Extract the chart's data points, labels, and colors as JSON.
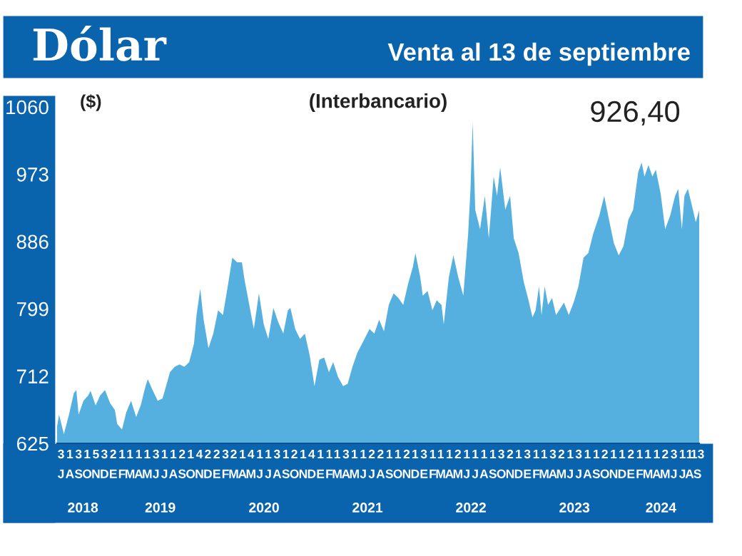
{
  "chart_data": {
    "type": "area",
    "title": "Dólar",
    "subtitle": "Venta al 13 de septiembre",
    "ylabel": "($)",
    "color": "#55b0e0",
    "annotations": [
      "(Interbancario)",
      "926,40"
    ],
    "x2ticks": [
      {
        "value": "2018-10-01",
        "label": "2018"
      },
      {
        "value": "2019-07-01",
        "label": "2019"
      },
      {
        "value": "2020-07-01",
        "label": "2020"
      },
      {
        "value": "2021-07-01",
        "label": "2021"
      },
      {
        "value": "2022-07-01",
        "label": "2022"
      },
      {
        "value": "2023-07-01",
        "label": "2023"
      },
      {
        "value": "2024-05-01",
        "label": "2024"
      }
    ],
    "x": [
      "2018-07-02",
      "2018-07-09",
      "2018-07-26",
      "2018-08-13",
      "2018-08-30",
      "2018-09-08",
      "2018-09-16",
      "2018-10-03",
      "2018-10-20",
      "2018-10-28",
      "2018-11-15",
      "2018-12-01",
      "2018-12-18",
      "2019-01-05",
      "2019-01-22",
      "2019-01-30",
      "2019-02-16",
      "2019-03-03",
      "2019-03-20",
      "2019-04-07",
      "2019-04-23",
      "2019-05-10",
      "2019-05-18",
      "2019-06-05",
      "2019-06-22",
      "2019-07-09",
      "2019-07-26",
      "2019-08-04",
      "2019-08-21",
      "2019-09-07",
      "2019-09-24",
      "2019-10-11",
      "2019-10-28",
      "2019-11-06",
      "2019-11-19",
      "2019-12-01",
      "2019-12-18",
      "2020-01-04",
      "2020-01-21",
      "2020-02-07",
      "2020-02-24",
      "2020-03-11",
      "2020-03-28",
      "2020-04-14",
      "2020-04-23",
      "2020-05-10",
      "2020-05-26",
      "2020-06-13",
      "2020-06-30",
      "2020-07-16",
      "2020-08-03",
      "2020-08-20",
      "2020-09-07",
      "2020-09-23",
      "2020-10-02",
      "2020-10-19",
      "2020-11-05",
      "2020-11-22",
      "2020-12-09",
      "2020-12-26",
      "2021-01-12",
      "2021-01-29",
      "2021-02-15",
      "2021-03-02",
      "2021-03-19",
      "2021-04-06",
      "2021-04-22",
      "2021-05-09",
      "2021-05-26",
      "2021-06-12",
      "2021-07-08",
      "2021-07-25",
      "2021-08-11",
      "2021-08-28",
      "2021-09-14",
      "2021-10-01",
      "2021-10-18",
      "2021-11-04",
      "2021-11-21",
      "2021-12-08",
      "2021-12-17",
      "2022-01-03",
      "2022-01-12",
      "2022-01-29",
      "2022-02-15",
      "2022-03-02",
      "2022-03-19",
      "2022-03-27",
      "2022-04-14",
      "2022-04-30",
      "2022-05-17",
      "2022-06-04",
      "2022-06-21",
      "2022-06-29",
      "2022-07-07",
      "2022-07-16",
      "2022-08-02",
      "2022-08-19",
      "2022-09-02",
      "2022-09-19",
      "2022-10-01",
      "2022-10-12",
      "2022-10-30",
      "2022-11-16",
      "2022-11-29",
      "2022-12-16",
      "2023-01-03",
      "2023-01-20",
      "2023-02-03",
      "2023-02-14",
      "2023-02-26",
      "2023-03-07",
      "2023-03-18",
      "2023-03-30",
      "2023-04-13",
      "2023-04-27",
      "2023-05-08",
      "2023-05-25",
      "2023-06-11",
      "2023-06-28",
      "2023-07-15",
      "2023-08-02",
      "2023-08-19",
      "2023-09-05",
      "2023-09-27",
      "2023-10-14",
      "2023-10-31",
      "2023-11-17",
      "2023-12-04",
      "2023-12-21",
      "2024-01-07",
      "2024-01-24",
      "2024-02-11",
      "2024-02-23",
      "2024-03-04",
      "2024-03-18",
      "2024-04-01",
      "2024-04-13",
      "2024-04-30",
      "2024-05-16",
      "2024-06-03",
      "2024-06-20",
      "2024-07-01",
      "2024-07-14",
      "2024-07-23",
      "2024-08-04",
      "2024-08-18",
      "2024-09-01",
      "2024-09-13"
    ],
    "values": [
      647,
      662,
      637,
      662,
      690,
      694,
      662,
      680,
      687,
      693,
      674,
      687,
      694,
      677,
      668,
      650,
      643,
      665,
      680,
      659,
      674,
      699,
      708,
      693,
      680,
      683,
      705,
      717,
      724,
      727,
      724,
      730,
      754,
      791,
      825,
      785,
      748,
      767,
      797,
      791,
      828,
      865,
      859,
      859,
      837,
      804,
      773,
      819,
      779,
      760,
      800,
      782,
      767,
      797,
      800,
      773,
      760,
      767,
      739,
      699,
      733,
      736,
      717,
      730,
      711,
      699,
      702,
      724,
      742,
      754,
      773,
      767,
      785,
      770,
      804,
      819,
      813,
      804,
      831,
      853,
      871,
      840,
      816,
      822,
      797,
      810,
      804,
      779,
      840,
      868,
      840,
      816,
      896,
      951,
      1040,
      927,
      902,
      945,
      890,
      970,
      945,
      982,
      927,
      945,
      890,
      871,
      834,
      810,
      788,
      797,
      828,
      791,
      828,
      804,
      813,
      791,
      797,
      807,
      791,
      807,
      828,
      865,
      871,
      896,
      920,
      945,
      914,
      884,
      868,
      880,
      914,
      927,
      976,
      988,
      970,
      985,
      970,
      979,
      948,
      902,
      920,
      945,
      954,
      902,
      945,
      954,
      933,
      911,
      926.4
    ],
    "ylim": [
      625,
      1060
    ],
    "yticks": [
      625,
      712,
      799,
      886,
      973,
      1060
    ],
    "xlim": [
      "2018-07-02",
      "2024-09-13"
    ],
    "x2lim": [
      "2018-07-02",
      "2024-09-13"
    ],
    "xticks": [
      {
        "value": "2018-07-16",
        "label": "3\nJ"
      },
      {
        "value": "2018-08-16",
        "label": "1\nA"
      },
      {
        "value": "2018-09-16",
        "label": "3\nS"
      },
      {
        "value": "2018-10-16",
        "label": "1\nO"
      },
      {
        "value": "2018-11-16",
        "label": "5\nN"
      },
      {
        "value": "2018-12-16",
        "label": "3\nD"
      },
      {
        "value": "2019-01-16",
        "label": "2\nE"
      },
      {
        "value": "2019-02-16",
        "label": "1\nF"
      },
      {
        "value": "2019-03-16",
        "label": "1\nM"
      },
      {
        "value": "2019-04-16",
        "label": "1\nA"
      },
      {
        "value": "2019-05-16",
        "label": "1\nM"
      },
      {
        "value": "2019-06-16",
        "label": "3\nJ"
      },
      {
        "value": "2019-07-16",
        "label": "1\nJ"
      },
      {
        "value": "2019-08-16",
        "label": "1\nA"
      },
      {
        "value": "2019-09-16",
        "label": "2\nS"
      },
      {
        "value": "2019-10-16",
        "label": "1\nO"
      },
      {
        "value": "2019-11-16",
        "label": "4\nN"
      },
      {
        "value": "2019-12-16",
        "label": "2\nD"
      },
      {
        "value": "2020-01-16",
        "label": "2\nE"
      },
      {
        "value": "2020-02-16",
        "label": "3\nF"
      },
      {
        "value": "2020-03-16",
        "label": "2\nM"
      },
      {
        "value": "2020-04-16",
        "label": "1\nA"
      },
      {
        "value": "2020-05-16",
        "label": "4\nM"
      },
      {
        "value": "2020-06-16",
        "label": "1\nJ"
      },
      {
        "value": "2020-07-16",
        "label": "1\nJ"
      },
      {
        "value": "2020-08-16",
        "label": "3\nA"
      },
      {
        "value": "2020-09-16",
        "label": "1\nS"
      },
      {
        "value": "2020-10-16",
        "label": "2\nO"
      },
      {
        "value": "2020-11-16",
        "label": "1\nN"
      },
      {
        "value": "2020-12-16",
        "label": "4\nD"
      },
      {
        "value": "2021-01-16",
        "label": "1\nE"
      },
      {
        "value": "2021-02-16",
        "label": "1\nF"
      },
      {
        "value": "2021-03-16",
        "label": "1\nM"
      },
      {
        "value": "2021-04-16",
        "label": "3\nA"
      },
      {
        "value": "2021-05-16",
        "label": "1\nM"
      },
      {
        "value": "2021-06-16",
        "label": "1\nJ"
      },
      {
        "value": "2021-07-16",
        "label": "2\nJ"
      },
      {
        "value": "2021-08-16",
        "label": "2\nA"
      },
      {
        "value": "2021-09-16",
        "label": "1\nS"
      },
      {
        "value": "2021-10-16",
        "label": "1\nO"
      },
      {
        "value": "2021-11-16",
        "label": "2\nN"
      },
      {
        "value": "2021-12-16",
        "label": "1\nD"
      },
      {
        "value": "2022-01-16",
        "label": "3\nE"
      },
      {
        "value": "2022-02-16",
        "label": "1\nF"
      },
      {
        "value": "2022-03-16",
        "label": "1\nM"
      },
      {
        "value": "2022-04-16",
        "label": "1\nA"
      },
      {
        "value": "2022-05-16",
        "label": "2\nM"
      },
      {
        "value": "2022-06-16",
        "label": "1\nJ"
      },
      {
        "value": "2022-07-16",
        "label": "1\nJ"
      },
      {
        "value": "2022-08-16",
        "label": "1\nA"
      },
      {
        "value": "2022-09-16",
        "label": "1\nS"
      },
      {
        "value": "2022-10-16",
        "label": "3\nO"
      },
      {
        "value": "2022-11-16",
        "label": "2\nN"
      },
      {
        "value": "2022-12-16",
        "label": "1\nD"
      },
      {
        "value": "2023-01-16",
        "label": "3\nE"
      },
      {
        "value": "2023-02-16",
        "label": "1\nF"
      },
      {
        "value": "2023-03-16",
        "label": "1\nM"
      },
      {
        "value": "2023-04-16",
        "label": "3\nA"
      },
      {
        "value": "2023-05-16",
        "label": "2\nM"
      },
      {
        "value": "2023-06-16",
        "label": "1\nJ"
      },
      {
        "value": "2023-07-16",
        "label": "3\nJ"
      },
      {
        "value": "2023-08-16",
        "label": "1\nA"
      },
      {
        "value": "2023-09-16",
        "label": "1\nS"
      },
      {
        "value": "2023-10-16",
        "label": "2\nO"
      },
      {
        "value": "2023-11-16",
        "label": "1\nN"
      },
      {
        "value": "2023-12-16",
        "label": "1\nD"
      },
      {
        "value": "2024-01-16",
        "label": "2\nE"
      },
      {
        "value": "2024-02-16",
        "label": "1\nF"
      },
      {
        "value": "2024-03-16",
        "label": "1\nM"
      },
      {
        "value": "2024-04-16",
        "label": "1\nA"
      },
      {
        "value": "2024-05-16",
        "label": "2\nM"
      },
      {
        "value": "2024-06-16",
        "label": "3\nJ"
      },
      {
        "value": "2024-07-16",
        "label": "1\nJ"
      },
      {
        "value": "2024-08-10",
        "label": "1\nA"
      },
      {
        "value": "2024-09-07",
        "label": "13\nS"
      }
    ],
    "grid": false,
    "legend": false
  }
}
